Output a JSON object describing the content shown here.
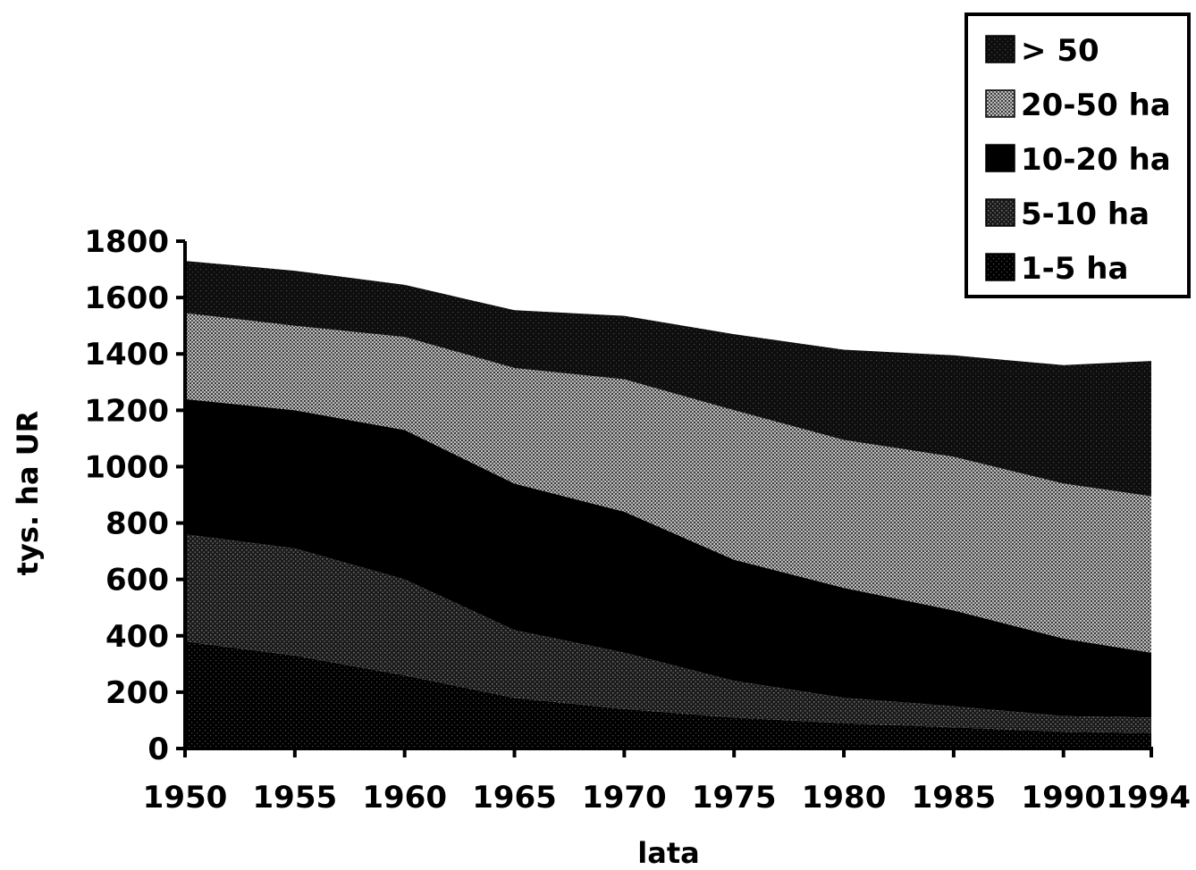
{
  "chart_data": {
    "type": "area",
    "stacked": true,
    "title": "",
    "xlabel": "lata",
    "ylabel": "tys. ha UR",
    "x": [
      1950,
      1955,
      1960,
      1965,
      1970,
      1975,
      1980,
      1985,
      1990,
      1994
    ],
    "xticks": [
      "1950",
      "1955",
      "1960",
      "1965",
      "1970",
      "1975",
      "1980",
      "1985",
      "1990",
      "1994"
    ],
    "ylim": [
      0,
      1800
    ],
    "yticks": [
      0,
      200,
      400,
      600,
      800,
      1000,
      1200,
      1400,
      1600,
      1800
    ],
    "grid": false,
    "legend_position": "top-right",
    "series": [
      {
        "name": "1-5 ha",
        "values": [
          380,
          330,
          260,
          180,
          140,
          110,
          90,
          75,
          60,
          55
        ],
        "color": "#0b0b0b"
      },
      {
        "name": "5-10 ha",
        "values": [
          380,
          380,
          340,
          240,
          200,
          130,
          90,
          75,
          55,
          55
        ],
        "color": "#222222"
      },
      {
        "name": "10-20 ha",
        "values": [
          480,
          490,
          530,
          520,
          500,
          430,
          390,
          340,
          275,
          230
        ],
        "color": "#000000"
      },
      {
        "name": "20-50 ha",
        "values": [
          305,
          300,
          330,
          410,
          470,
          530,
          525,
          545,
          550,
          555
        ],
        "color": "#8c8c8c"
      },
      {
        "name": "> 50",
        "values": [
          185,
          195,
          185,
          205,
          225,
          270,
          320,
          360,
          420,
          480
        ],
        "color": "#151515"
      }
    ]
  }
}
